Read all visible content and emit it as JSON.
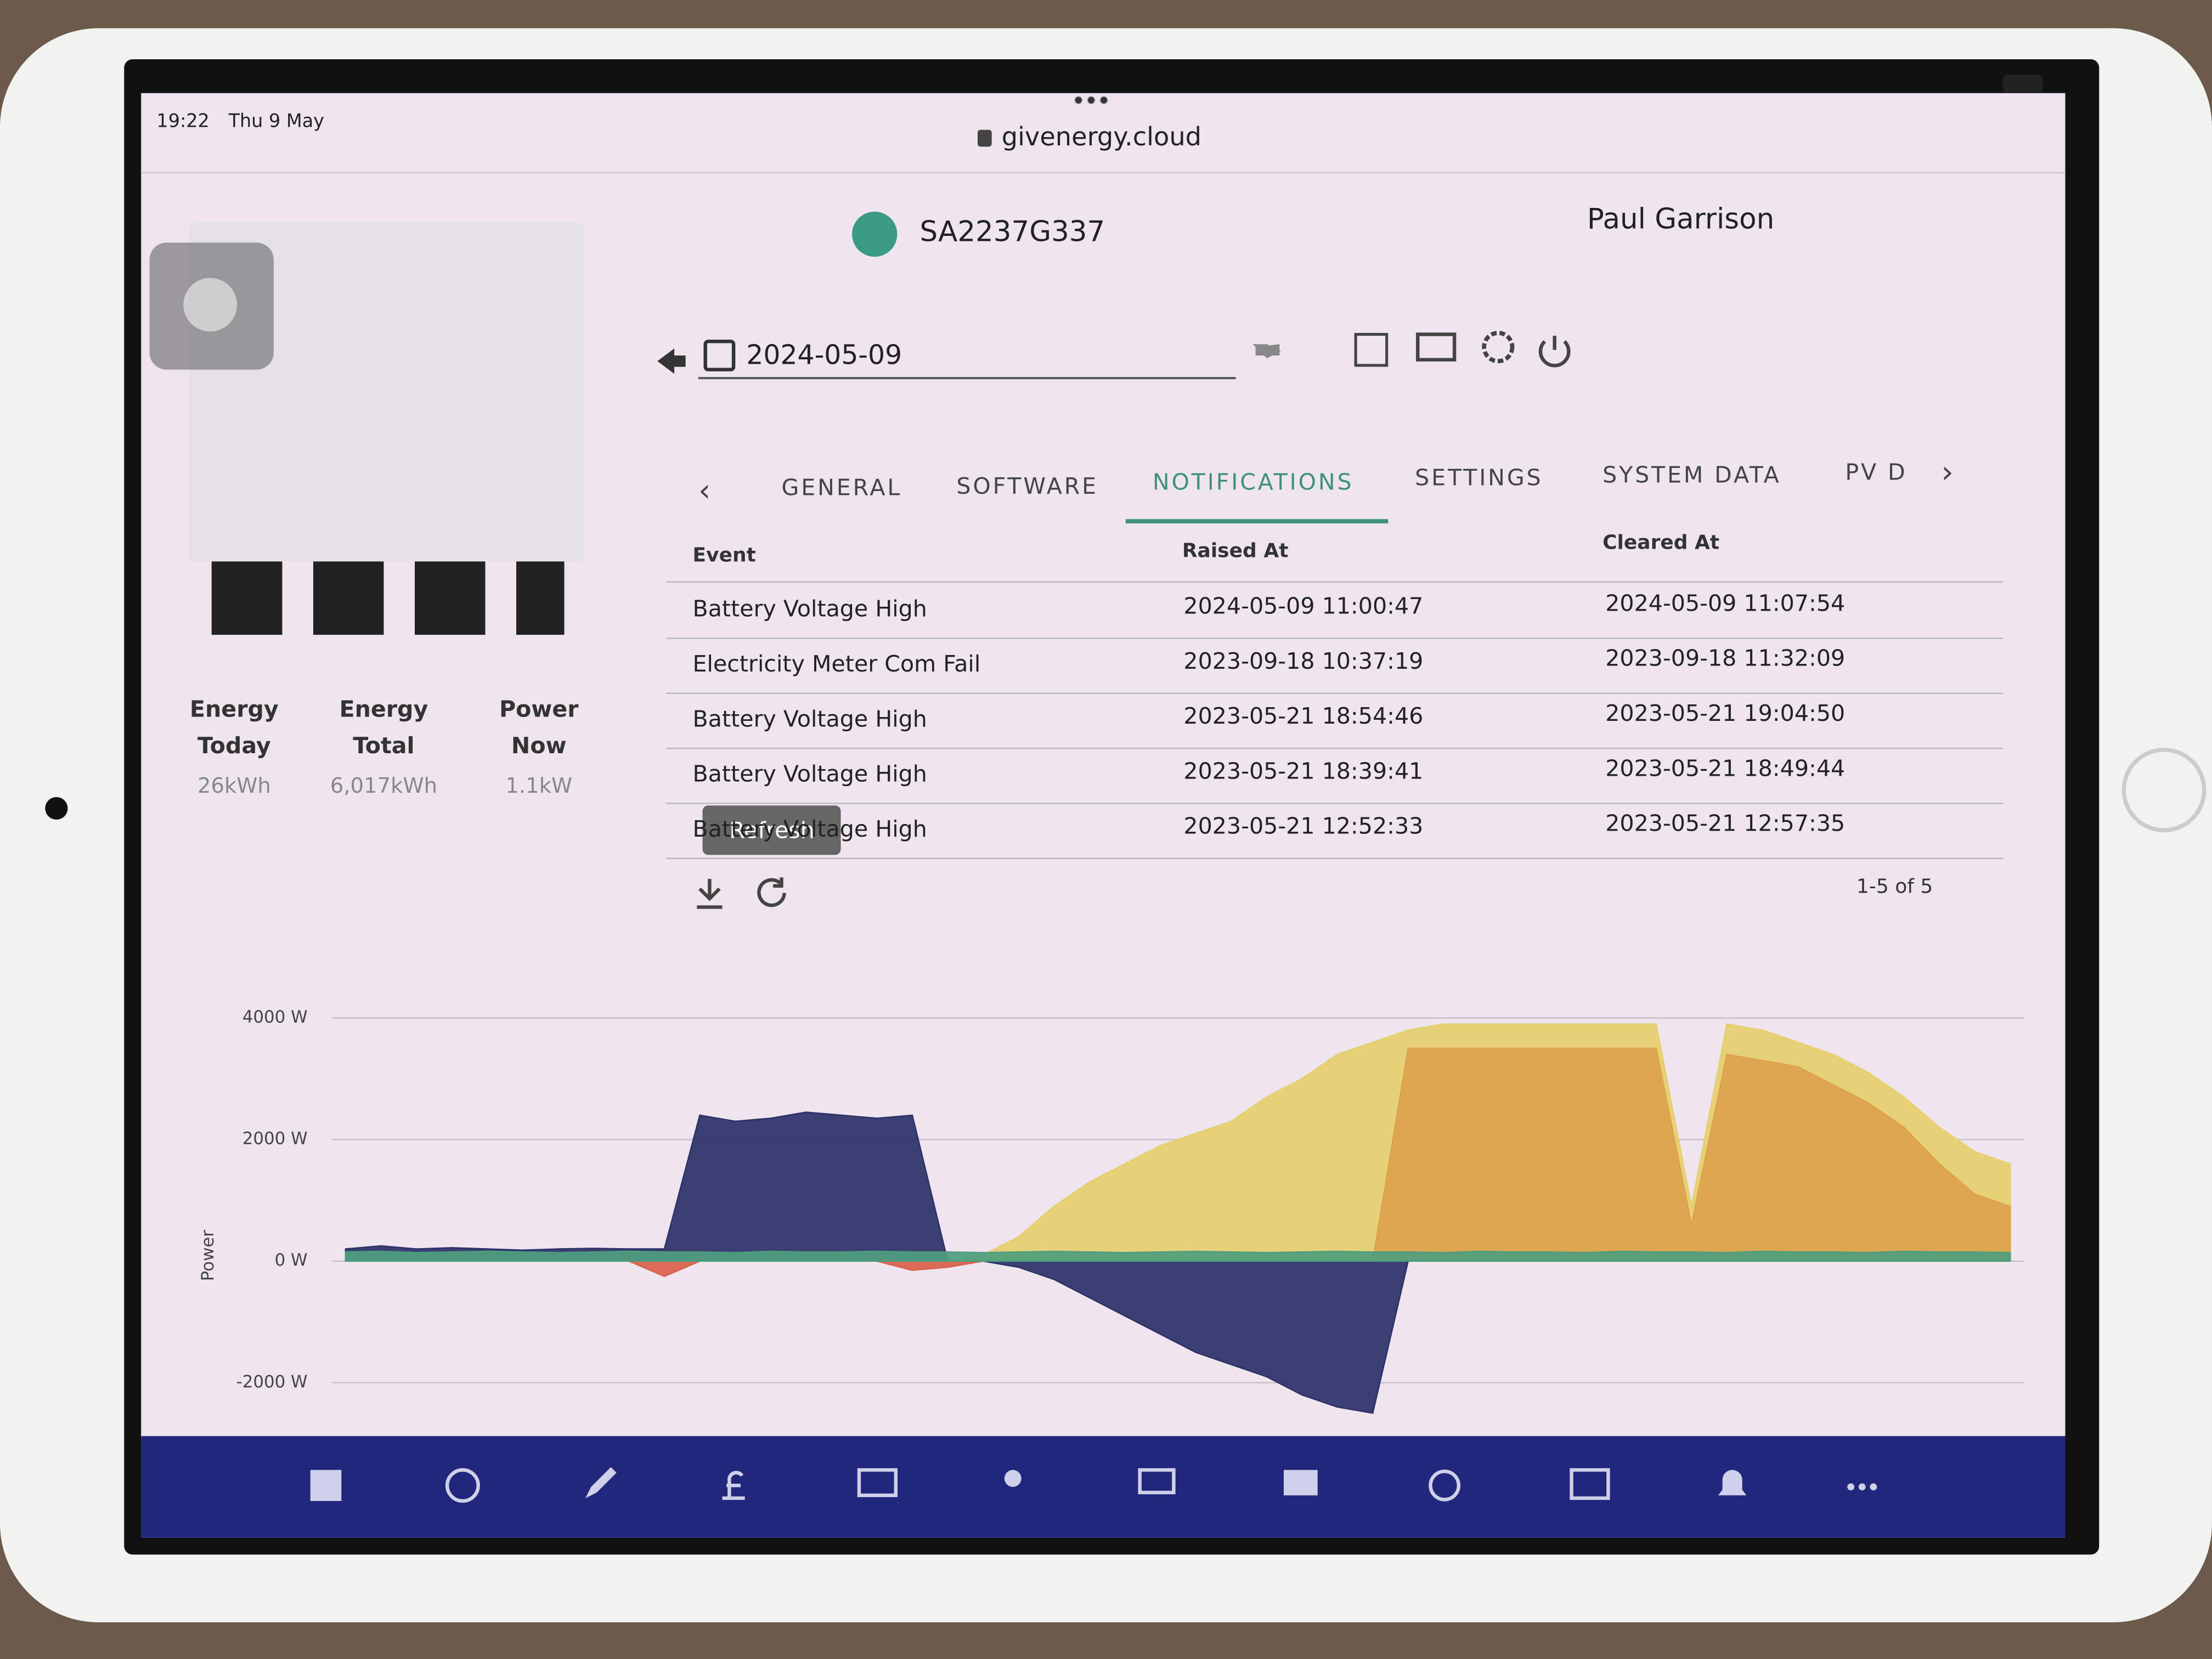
{
  "status_bar": {
    "time": "19:22",
    "date": "Thu 9 May",
    "url": "givenergy.cloud"
  },
  "header": {
    "serial": "SA2237G337",
    "user": "Paul Garrison"
  },
  "date_picker": {
    "date": "2024-05-09"
  },
  "tabs": [
    "GENERAL",
    "SOFTWARE",
    "NOTIFICATIONS",
    "SETTINGS",
    "SYSTEM DATA",
    "PV D"
  ],
  "table": {
    "columns": [
      "Event",
      "Raised At",
      "Cleared At"
    ],
    "rows": [
      [
        "Battery Voltage High",
        "2024-05-09 11:00:47",
        "2024-05-09 11:07:54"
      ],
      [
        "Electricity Meter Com Fail",
        "2023-09-18 10:37:19",
        "2023-09-18 11:32:09"
      ],
      [
        "Battery Voltage High",
        "2023-05-21 18:54:46",
        "2023-05-21 19:04:50"
      ],
      [
        "Battery Voltage High",
        "2023-05-21 18:39:41",
        "2023-05-21 18:49:44"
      ],
      [
        "Battery Voltage High",
        "2023-05-21 12:52:33",
        "2023-05-21 12:57:35"
      ]
    ]
  },
  "tooltip": "Refresh",
  "pagination": "1-5 of 5",
  "stats": [
    {
      "label": "Energy Today",
      "value": "26kWh"
    },
    {
      "label": "Energy Total",
      "value": "6,017kWh"
    },
    {
      "label": "Power Now",
      "value": "1.1kW"
    }
  ],
  "chart_data": {
    "type": "area",
    "y_label": "Power",
    "ylim": [
      -2600,
      4200
    ],
    "yticks": [
      {
        "value": 4000,
        "label": "4000 W"
      },
      {
        "value": 2000,
        "label": "2000 W"
      },
      {
        "value": 0,
        "label": "0 W"
      },
      {
        "value": -2000,
        "label": "-2000 W"
      }
    ],
    "grid": true,
    "series": [
      {
        "color": "#e6cf6e",
        "values": [
          0,
          0,
          0,
          0,
          0,
          0,
          0,
          0,
          0,
          0,
          0,
          0,
          0,
          0,
          0,
          0,
          0,
          0,
          100,
          400,
          900,
          1300,
          1600,
          1900,
          2100,
          2300,
          2700,
          3000,
          3400,
          3600,
          3800,
          3900,
          3900,
          3900,
          3900,
          3900,
          3900,
          3900,
          900,
          3900,
          3800,
          3600,
          3400,
          3100,
          2700,
          2200,
          1800,
          1600
        ]
      },
      {
        "color": "#dda24b",
        "values": [
          0,
          0,
          0,
          0,
          0,
          0,
          0,
          0,
          0,
          0,
          0,
          0,
          0,
          0,
          0,
          0,
          0,
          0,
          0,
          0,
          0,
          0,
          0,
          0,
          0,
          0,
          0,
          0,
          0,
          0,
          3500,
          3500,
          3500,
          3500,
          3500,
          3500,
          3500,
          3500,
          600,
          3400,
          3300,
          3200,
          2900,
          2600,
          2200,
          1600,
          1100,
          900
        ]
      },
      {
        "color": "#2c3168",
        "values": [
          200,
          250,
          200,
          220,
          200,
          180,
          200,
          210,
          200,
          200,
          2400,
          2300,
          2350,
          2450,
          2400,
          2350,
          2400,
          0,
          0,
          -100,
          -300,
          -600,
          -900,
          -1200,
          -1500,
          -1700,
          -1900,
          -2200,
          -2400,
          -2500,
          0,
          0,
          0,
          0,
          0,
          0,
          0,
          0,
          0,
          0,
          0,
          0,
          0,
          0,
          0,
          0,
          0,
          0
        ]
      },
      {
        "color": "#d9604a",
        "values": [
          0,
          0,
          0,
          0,
          0,
          0,
          0,
          0,
          0,
          -250,
          0,
          0,
          0,
          0,
          0,
          0,
          -150,
          -100,
          0,
          0,
          0,
          0,
          0,
          0,
          0,
          0,
          0,
          0,
          0,
          0,
          0,
          0,
          0,
          0,
          0,
          0,
          0,
          0,
          0,
          0,
          0,
          0,
          0,
          0,
          0,
          0,
          0,
          0
        ]
      },
      {
        "color": "#4e9e7e",
        "values": [
          150,
          160,
          140,
          150,
          160,
          150,
          140,
          150,
          160,
          150,
          150,
          140,
          160,
          150,
          150,
          160,
          150,
          150,
          140,
          150,
          160,
          150,
          140,
          150,
          160,
          150,
          140,
          150,
          160,
          150,
          150,
          140,
          160,
          150,
          150,
          140,
          160,
          150,
          150,
          140,
          160,
          150,
          150,
          140,
          160,
          150,
          150,
          140
        ]
      }
    ]
  }
}
